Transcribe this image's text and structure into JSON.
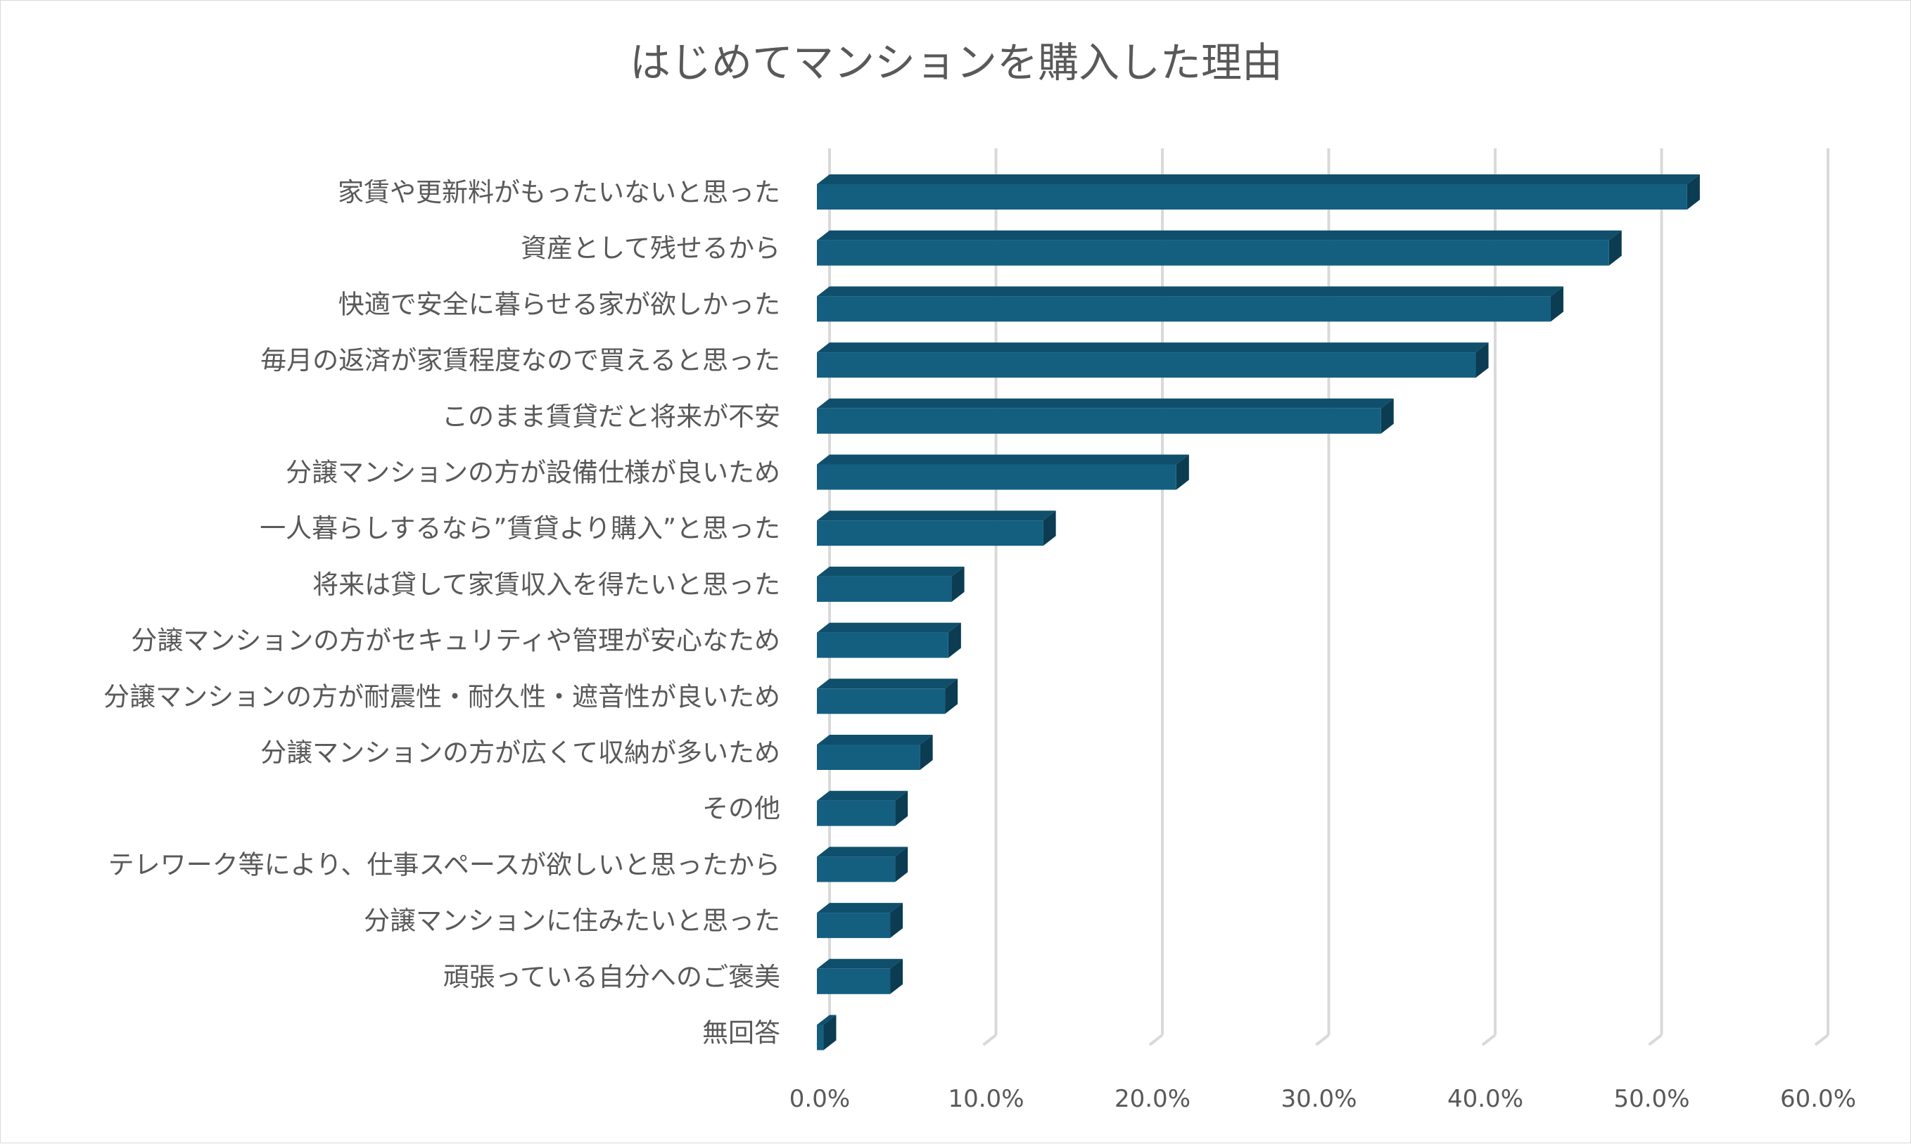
{
  "chart_data": {
    "type": "bar",
    "orientation": "horizontal",
    "style": "3d",
    "title": "はじめてマンションを購入した理由",
    "xlabel": "",
    "ylabel": "",
    "xlim": [
      0,
      60
    ],
    "ticks": [
      0,
      10,
      20,
      30,
      40,
      50,
      60
    ],
    "tick_labels": [
      "0.0%",
      "10.0%",
      "20.0%",
      "30.0%",
      "40.0%",
      "50.0%",
      "60.0%"
    ],
    "grid": true,
    "legend": "none",
    "categories": [
      "家賃や更新料がもったいないと思った",
      "資産として残せるから",
      "快適で安全に暮らせる家が欲しかった",
      "毎月の返済が家賃程度なので買えると思った",
      "このまま賃貸だと将来が不安",
      "分譲マンションの方が設備仕様が良いため",
      "一人暮らしするなら”賃貸より購入”と思った",
      "将来は貸して家賃収入を得たいと思った",
      "分譲マンションの方がセキュリティや管理が安心なため",
      "分譲マンションの方が耐震性・耐久性・遮音性が良いため",
      "分譲マンションの方が広くて収納が多いため",
      "その他",
      "テレワーク等により、仕事スペースが欲しいと思ったから",
      "分譲マンションに住みたいと思った",
      "頑張っている自分へのご褒美",
      "無回答"
    ],
    "values": [
      52.3,
      47.6,
      44.1,
      39.6,
      33.9,
      21.6,
      13.6,
      8.1,
      7.9,
      7.7,
      6.2,
      4.7,
      4.7,
      4.4,
      4.4,
      0.4
    ],
    "colors": {
      "bar_front": "#145f80",
      "bar_top": "#0f4f6b",
      "bar_side": "#0b3c52",
      "grid": "#d9d9d9",
      "text": "#595959"
    }
  }
}
